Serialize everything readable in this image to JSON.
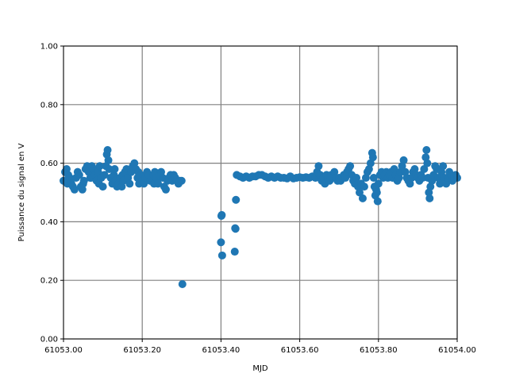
{
  "chart_data": {
    "type": "scatter",
    "title": "",
    "xlabel": "MJD",
    "ylabel": "Puissance du signal en V",
    "xlim": [
      61053.0,
      61054.0
    ],
    "ylim": [
      0.0,
      1.0
    ],
    "xticks": [
      61053.0,
      61053.2,
      61053.4,
      61053.6,
      61053.8,
      61054.0
    ],
    "xtick_labels": [
      "61053.00",
      "61053.20",
      "61053.40",
      "61053.60",
      "61053.80",
      "61054.00"
    ],
    "yticks": [
      0.0,
      0.2,
      0.4,
      0.6,
      0.8,
      1.0
    ],
    "ytick_labels": [
      "0.00",
      "0.20",
      "0.40",
      "0.60",
      "0.80",
      "1.00"
    ],
    "grid": true,
    "color": "#1f77b4",
    "points": [
      [
        61053.0,
        0.54
      ],
      [
        61053.004,
        0.57
      ],
      [
        61053.008,
        0.58
      ],
      [
        61053.01,
        0.53
      ],
      [
        61053.012,
        0.56
      ],
      [
        61053.016,
        0.55
      ],
      [
        61053.02,
        0.53
      ],
      [
        61053.024,
        0.52
      ],
      [
        61053.028,
        0.51
      ],
      [
        61053.032,
        0.55
      ],
      [
        61053.036,
        0.57
      ],
      [
        61053.04,
        0.56
      ],
      [
        61053.044,
        0.52
      ],
      [
        61053.048,
        0.51
      ],
      [
        61053.05,
        0.53
      ],
      [
        61053.052,
        0.54
      ],
      [
        61053.056,
        0.58
      ],
      [
        61053.06,
        0.59
      ],
      [
        61053.064,
        0.57
      ],
      [
        61053.068,
        0.55
      ],
      [
        61053.07,
        0.55
      ],
      [
        61053.072,
        0.59
      ],
      [
        61053.076,
        0.58
      ],
      [
        61053.08,
        0.56
      ],
      [
        61053.084,
        0.54
      ],
      [
        61053.088,
        0.57
      ],
      [
        61053.09,
        0.53
      ],
      [
        61053.092,
        0.59
      ],
      [
        61053.096,
        0.55
      ],
      [
        61053.1,
        0.52
      ],
      [
        61053.104,
        0.56
      ],
      [
        61053.108,
        0.59
      ],
      [
        61053.11,
        0.63
      ],
      [
        61053.112,
        0.645
      ],
      [
        61053.114,
        0.61
      ],
      [
        61053.116,
        0.58
      ],
      [
        61053.12,
        0.55
      ],
      [
        61053.124,
        0.53
      ],
      [
        61053.128,
        0.56
      ],
      [
        61053.13,
        0.58
      ],
      [
        61053.132,
        0.54
      ],
      [
        61053.136,
        0.52
      ],
      [
        61053.14,
        0.53
      ],
      [
        61053.144,
        0.55
      ],
      [
        61053.148,
        0.52
      ],
      [
        61053.15,
        0.56
      ],
      [
        61053.152,
        0.54
      ],
      [
        61053.156,
        0.57
      ],
      [
        61053.16,
        0.58
      ],
      [
        61053.164,
        0.55
      ],
      [
        61053.168,
        0.53
      ],
      [
        61053.172,
        0.57
      ],
      [
        61053.176,
        0.59
      ],
      [
        61053.18,
        0.6
      ],
      [
        61053.184,
        0.58
      ],
      [
        61053.188,
        0.55
      ],
      [
        61053.19,
        0.57
      ],
      [
        61053.192,
        0.53
      ],
      [
        61053.196,
        0.56
      ],
      [
        61053.2,
        0.54
      ],
      [
        61053.204,
        0.53
      ],
      [
        61053.208,
        0.55
      ],
      [
        61053.212,
        0.57
      ],
      [
        61053.216,
        0.56
      ],
      [
        61053.22,
        0.54
      ],
      [
        61053.224,
        0.55
      ],
      [
        61053.228,
        0.56
      ],
      [
        61053.23,
        0.53
      ],
      [
        61053.232,
        0.57
      ],
      [
        61053.236,
        0.55
      ],
      [
        61053.24,
        0.53
      ],
      [
        61053.244,
        0.56
      ],
      [
        61053.248,
        0.57
      ],
      [
        61053.252,
        0.55
      ],
      [
        61053.256,
        0.52
      ],
      [
        61053.26,
        0.51
      ],
      [
        61053.264,
        0.54
      ],
      [
        61053.268,
        0.55
      ],
      [
        61053.272,
        0.56
      ],
      [
        61053.276,
        0.54
      ],
      [
        61053.28,
        0.56
      ],
      [
        61053.284,
        0.55
      ],
      [
        61053.288,
        0.54
      ],
      [
        61053.292,
        0.53
      ],
      [
        61053.296,
        0.54
      ],
      [
        61053.3,
        0.54
      ],
      [
        61053.302,
        0.187
      ],
      [
        61053.4,
        0.33
      ],
      [
        61053.401,
        0.42
      ],
      [
        61053.402,
        0.423
      ],
      [
        61053.403,
        0.285
      ],
      [
        61053.435,
        0.298
      ],
      [
        61053.436,
        0.378
      ],
      [
        61053.437,
        0.376
      ],
      [
        61053.438,
        0.475
      ],
      [
        61053.44,
        0.56
      ],
      [
        61053.448,
        0.555
      ],
      [
        61053.456,
        0.55
      ],
      [
        61053.464,
        0.555
      ],
      [
        61053.472,
        0.55
      ],
      [
        61053.48,
        0.555
      ],
      [
        61053.488,
        0.555
      ],
      [
        61053.496,
        0.56
      ],
      [
        61053.504,
        0.56
      ],
      [
        61053.512,
        0.555
      ],
      [
        61053.52,
        0.55
      ],
      [
        61053.528,
        0.555
      ],
      [
        61053.536,
        0.55
      ],
      [
        61053.544,
        0.555
      ],
      [
        61053.552,
        0.55
      ],
      [
        61053.56,
        0.55
      ],
      [
        61053.568,
        0.548
      ],
      [
        61053.576,
        0.555
      ],
      [
        61053.584,
        0.548
      ],
      [
        61053.592,
        0.55
      ],
      [
        61053.6,
        0.552
      ],
      [
        61053.608,
        0.55
      ],
      [
        61053.616,
        0.552
      ],
      [
        61053.624,
        0.55
      ],
      [
        61053.632,
        0.555
      ],
      [
        61053.64,
        0.55
      ],
      [
        61053.644,
        0.57
      ],
      [
        61053.648,
        0.59
      ],
      [
        61053.652,
        0.56
      ],
      [
        61053.656,
        0.54
      ],
      [
        61053.66,
        0.55
      ],
      [
        61053.664,
        0.53
      ],
      [
        61053.668,
        0.56
      ],
      [
        61053.672,
        0.55
      ],
      [
        61053.676,
        0.54
      ],
      [
        61053.68,
        0.56
      ],
      [
        61053.684,
        0.55
      ],
      [
        61053.688,
        0.57
      ],
      [
        61053.692,
        0.55
      ],
      [
        61053.696,
        0.54
      ],
      [
        61053.7,
        0.55
      ],
      [
        61053.704,
        0.54
      ],
      [
        61053.708,
        0.55
      ],
      [
        61053.712,
        0.56
      ],
      [
        61053.716,
        0.55
      ],
      [
        61053.72,
        0.57
      ],
      [
        61053.724,
        0.58
      ],
      [
        61053.728,
        0.59
      ],
      [
        61053.732,
        0.56
      ],
      [
        61053.736,
        0.54
      ],
      [
        61053.74,
        0.53
      ],
      [
        61053.744,
        0.55
      ],
      [
        61053.748,
        0.52
      ],
      [
        61053.752,
        0.5
      ],
      [
        61053.756,
        0.53
      ],
      [
        61053.76,
        0.48
      ],
      [
        61053.764,
        0.52
      ],
      [
        61053.768,
        0.55
      ],
      [
        61053.772,
        0.57
      ],
      [
        61053.776,
        0.58
      ],
      [
        61053.78,
        0.6
      ],
      [
        61053.784,
        0.635
      ],
      [
        61053.786,
        0.62
      ],
      [
        61053.788,
        0.55
      ],
      [
        61053.79,
        0.52
      ],
      [
        61053.792,
        0.49
      ],
      [
        61053.794,
        0.51
      ],
      [
        61053.796,
        0.5
      ],
      [
        61053.798,
        0.47
      ],
      [
        61053.8,
        0.53
      ],
      [
        61053.804,
        0.56
      ],
      [
        61053.808,
        0.57
      ],
      [
        61053.812,
        0.55
      ],
      [
        61053.816,
        0.56
      ],
      [
        61053.82,
        0.57
      ],
      [
        61053.824,
        0.55
      ],
      [
        61053.828,
        0.56
      ],
      [
        61053.832,
        0.57
      ],
      [
        61053.836,
        0.55
      ],
      [
        61053.84,
        0.58
      ],
      [
        61053.844,
        0.56
      ],
      [
        61053.848,
        0.54
      ],
      [
        61053.852,
        0.55
      ],
      [
        61053.856,
        0.57
      ],
      [
        61053.86,
        0.59
      ],
      [
        61053.864,
        0.61
      ],
      [
        61053.868,
        0.57
      ],
      [
        61053.872,
        0.55
      ],
      [
        61053.876,
        0.54
      ],
      [
        61053.88,
        0.53
      ],
      [
        61053.884,
        0.55
      ],
      [
        61053.888,
        0.57
      ],
      [
        61053.892,
        0.58
      ],
      [
        61053.896,
        0.56
      ],
      [
        61053.9,
        0.55
      ],
      [
        61053.904,
        0.54
      ],
      [
        61053.908,
        0.56
      ],
      [
        61053.912,
        0.55
      ],
      [
        61053.916,
        0.58
      ],
      [
        61053.92,
        0.62
      ],
      [
        61053.922,
        0.645
      ],
      [
        61053.924,
        0.6
      ],
      [
        61053.926,
        0.55
      ],
      [
        61053.928,
        0.5
      ],
      [
        61053.93,
        0.48
      ],
      [
        61053.932,
        0.52
      ],
      [
        61053.936,
        0.54
      ],
      [
        61053.94,
        0.56
      ],
      [
        61053.944,
        0.59
      ],
      [
        61053.948,
        0.58
      ],
      [
        61053.952,
        0.55
      ],
      [
        61053.956,
        0.53
      ],
      [
        61053.96,
        0.57
      ],
      [
        61053.964,
        0.59
      ],
      [
        61053.968,
        0.55
      ],
      [
        61053.972,
        0.53
      ],
      [
        61053.976,
        0.55
      ],
      [
        61053.98,
        0.57
      ],
      [
        61053.984,
        0.56
      ],
      [
        61053.988,
        0.54
      ],
      [
        61053.992,
        0.55
      ],
      [
        61053.996,
        0.56
      ],
      [
        61054.0,
        0.55
      ]
    ]
  }
}
